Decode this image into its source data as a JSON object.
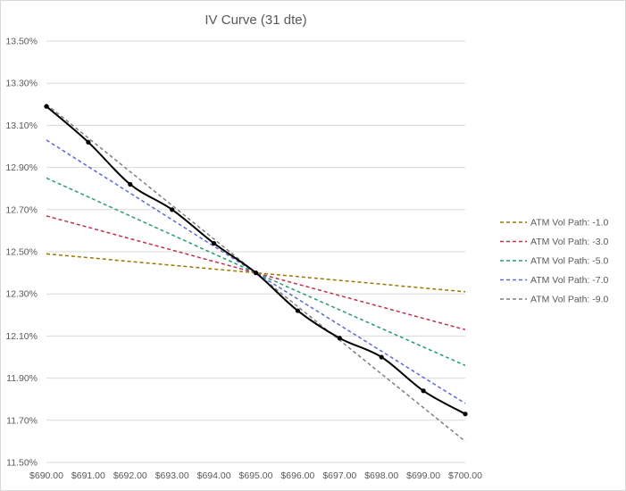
{
  "chart_data": {
    "type": "line",
    "title": "IV Curve  (31 dte)",
    "xlabel": "",
    "ylabel": "",
    "x": [
      690,
      691,
      692,
      693,
      694,
      695,
      696,
      697,
      698,
      699,
      700
    ],
    "x_tick_labels": [
      "$690.00",
      "$691.00",
      "$692.00",
      "$693.00",
      "$694.00",
      "$695.00",
      "$696.00",
      "$697.00",
      "$698.00",
      "$699.00",
      "$700.00"
    ],
    "xlim": [
      690,
      700
    ],
    "ylim": [
      11.5,
      13.5
    ],
    "y_ticks": [
      11.5,
      11.7,
      11.9,
      12.1,
      12.3,
      12.5,
      12.7,
      12.9,
      13.1,
      13.3,
      13.5
    ],
    "y_tick_labels": [
      "11.50%",
      "11.70%",
      "11.90%",
      "12.10%",
      "12.30%",
      "12.50%",
      "12.70%",
      "12.90%",
      "13.10%",
      "13.30%",
      "13.50%"
    ],
    "grid": "horizontal",
    "legend_position": "right",
    "curve": {
      "color": "#000000",
      "values": [
        13.19,
        13.02,
        12.82,
        12.7,
        12.54,
        12.4,
        12.22,
        12.09,
        12.0,
        11.84,
        11.73
      ]
    },
    "series": [
      {
        "name": "ATM Vol Path: -1.0",
        "color": "#9a7800",
        "values": [
          12.49,
          12.472,
          12.454,
          12.436,
          12.418,
          12.4,
          12.382,
          12.364,
          12.346,
          12.328,
          12.31
        ]
      },
      {
        "name": "ATM Vol Path: -3.0",
        "color": "#c0304a",
        "values": [
          12.67,
          12.616,
          12.562,
          12.508,
          12.454,
          12.4,
          12.346,
          12.292,
          12.238,
          12.184,
          12.13
        ]
      },
      {
        "name": "ATM Vol Path: -5.0",
        "color": "#2a9a6e",
        "values": [
          12.85,
          12.76,
          12.67,
          12.58,
          12.49,
          12.4,
          12.312,
          12.224,
          12.136,
          12.048,
          11.96
        ]
      },
      {
        "name": "ATM Vol Path: -7.0",
        "color": "#5a6ad8",
        "values": [
          13.03,
          12.904,
          12.778,
          12.652,
          12.526,
          12.4,
          12.276,
          12.152,
          12.028,
          11.904,
          11.78
        ]
      },
      {
        "name": "ATM Vol Path: -9.0",
        "color": "#7f7f7f",
        "values": [
          13.2,
          13.04,
          12.88,
          12.72,
          12.56,
          12.4,
          12.24,
          12.08,
          11.92,
          11.76,
          11.6
        ]
      }
    ]
  }
}
